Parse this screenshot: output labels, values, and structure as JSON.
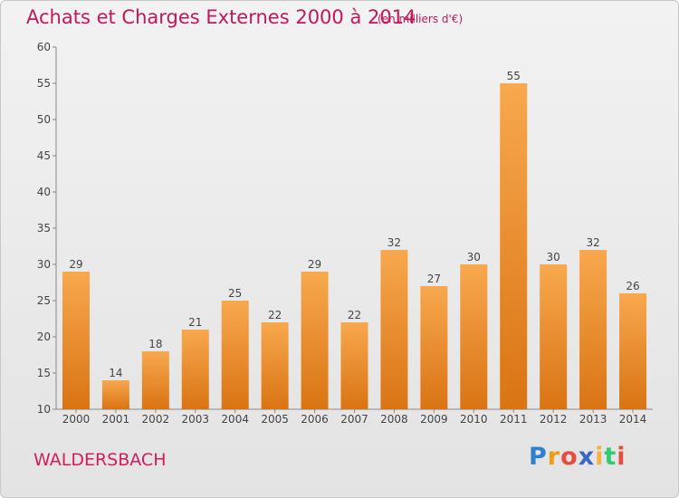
{
  "title": "Achats et Charges Externes 2000 à 2014",
  "subtitle": "(en milliers d'€)",
  "commune": "WALDERSBACH",
  "logo": {
    "letters": [
      "P",
      "r",
      "o",
      "x",
      "i",
      "t",
      "i"
    ],
    "colors": [
      "#2f7fd1",
      "#f39c12",
      "#e74c3c",
      "#3a66c8",
      "#f5b041",
      "#2ecc71",
      "#e74c3c"
    ]
  },
  "colors": {
    "bar_light": "#f8a84e",
    "bar_dark": "#d97414",
    "title": "#c2185b",
    "axis": "#888888",
    "grid": "#d8d8d8"
  },
  "chart_data": {
    "type": "bar",
    "title": "Achats et Charges Externes 2000 à 2014",
    "subtitle": "(en milliers d'€)",
    "categories": [
      "2000",
      "2001",
      "2002",
      "2003",
      "2004",
      "2005",
      "2006",
      "2007",
      "2008",
      "2009",
      "2010",
      "2011",
      "2012",
      "2013",
      "2014"
    ],
    "values": [
      29,
      14,
      18,
      21,
      25,
      22,
      29,
      22,
      32,
      27,
      30,
      55,
      30,
      32,
      26
    ],
    "ylim": [
      10,
      60
    ],
    "yticks": [
      10,
      15,
      20,
      25,
      30,
      35,
      40,
      45,
      50,
      55,
      60
    ],
    "grid": false,
    "data_labels": true
  }
}
